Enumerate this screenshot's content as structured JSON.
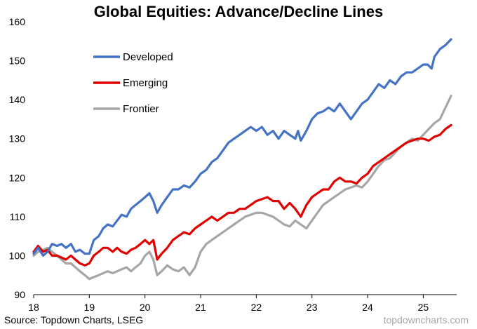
{
  "chart_data": {
    "type": "line",
    "title": "Global Equities: Advance/Decline Lines",
    "xlabel": "",
    "ylabel": "",
    "xlim": [
      2018.0,
      2025.6
    ],
    "ylim": [
      90,
      160
    ],
    "y_ticks": [
      90,
      100,
      110,
      120,
      130,
      140,
      150,
      160
    ],
    "x_ticks": [
      18,
      19,
      20,
      21,
      22,
      23,
      24,
      25
    ],
    "legend_position": "top-left",
    "grid": false,
    "series": [
      {
        "name": "Developed",
        "color": "#4472C4",
        "points": [
          [
            2018.0,
            100.5
          ],
          [
            2018.08,
            102
          ],
          [
            2018.17,
            100
          ],
          [
            2018.25,
            101
          ],
          [
            2018.33,
            103
          ],
          [
            2018.42,
            102.5
          ],
          [
            2018.5,
            103
          ],
          [
            2018.58,
            102
          ],
          [
            2018.67,
            103
          ],
          [
            2018.75,
            101
          ],
          [
            2018.83,
            101.5
          ],
          [
            2018.92,
            100.5
          ],
          [
            2019.0,
            100.5
          ],
          [
            2019.08,
            104
          ],
          [
            2019.17,
            105
          ],
          [
            2019.25,
            107
          ],
          [
            2019.33,
            108
          ],
          [
            2019.42,
            107.5
          ],
          [
            2019.5,
            109
          ],
          [
            2019.58,
            110.5
          ],
          [
            2019.67,
            110
          ],
          [
            2019.75,
            112
          ],
          [
            2019.83,
            113
          ],
          [
            2019.92,
            114
          ],
          [
            2020.0,
            115
          ],
          [
            2020.08,
            116
          ],
          [
            2020.15,
            114
          ],
          [
            2020.22,
            111
          ],
          [
            2020.3,
            113
          ],
          [
            2020.4,
            115
          ],
          [
            2020.5,
            117
          ],
          [
            2020.6,
            117
          ],
          [
            2020.7,
            118
          ],
          [
            2020.8,
            117.5
          ],
          [
            2020.9,
            119
          ],
          [
            2021.0,
            121
          ],
          [
            2021.1,
            122
          ],
          [
            2021.2,
            124
          ],
          [
            2021.3,
            125
          ],
          [
            2021.4,
            127
          ],
          [
            2021.5,
            129
          ],
          [
            2021.6,
            130
          ],
          [
            2021.7,
            131
          ],
          [
            2021.8,
            132
          ],
          [
            2021.9,
            133
          ],
          [
            2022.0,
            132
          ],
          [
            2022.1,
            133
          ],
          [
            2022.2,
            131
          ],
          [
            2022.3,
            132
          ],
          [
            2022.4,
            130
          ],
          [
            2022.5,
            132
          ],
          [
            2022.6,
            131
          ],
          [
            2022.7,
            130
          ],
          [
            2022.75,
            132
          ],
          [
            2022.8,
            129.5
          ],
          [
            2022.9,
            132
          ],
          [
            2023.0,
            135
          ],
          [
            2023.1,
            136.5
          ],
          [
            2023.2,
            137
          ],
          [
            2023.3,
            138
          ],
          [
            2023.4,
            137
          ],
          [
            2023.5,
            139
          ],
          [
            2023.6,
            137
          ],
          [
            2023.7,
            135
          ],
          [
            2023.8,
            137
          ],
          [
            2023.9,
            139
          ],
          [
            2024.0,
            140
          ],
          [
            2024.1,
            142
          ],
          [
            2024.2,
            144
          ],
          [
            2024.3,
            143
          ],
          [
            2024.4,
            145
          ],
          [
            2024.5,
            144
          ],
          [
            2024.6,
            146
          ],
          [
            2024.7,
            147
          ],
          [
            2024.8,
            147
          ],
          [
            2024.9,
            148
          ],
          [
            2025.0,
            149
          ],
          [
            2025.08,
            149
          ],
          [
            2025.15,
            148
          ],
          [
            2025.2,
            151
          ],
          [
            2025.3,
            153
          ],
          [
            2025.4,
            154
          ],
          [
            2025.5,
            155.5
          ]
        ]
      },
      {
        "name": "Emerging",
        "color": "#E00000",
        "points": [
          [
            2018.0,
            101
          ],
          [
            2018.08,
            102.5
          ],
          [
            2018.17,
            101
          ],
          [
            2018.25,
            101.5
          ],
          [
            2018.33,
            100
          ],
          [
            2018.42,
            100
          ],
          [
            2018.5,
            99.5
          ],
          [
            2018.58,
            99
          ],
          [
            2018.67,
            100
          ],
          [
            2018.75,
            99
          ],
          [
            2018.83,
            98
          ],
          [
            2018.92,
            97.5
          ],
          [
            2019.0,
            98
          ],
          [
            2019.08,
            100
          ],
          [
            2019.17,
            101
          ],
          [
            2019.25,
            102
          ],
          [
            2019.33,
            102
          ],
          [
            2019.42,
            101
          ],
          [
            2019.5,
            102
          ],
          [
            2019.58,
            101
          ],
          [
            2019.67,
            100.5
          ],
          [
            2019.75,
            101.5
          ],
          [
            2019.83,
            102
          ],
          [
            2019.92,
            103
          ],
          [
            2020.0,
            104
          ],
          [
            2020.08,
            103
          ],
          [
            2020.15,
            104
          ],
          [
            2020.22,
            99
          ],
          [
            2020.3,
            100.5
          ],
          [
            2020.4,
            102
          ],
          [
            2020.5,
            104
          ],
          [
            2020.6,
            105
          ],
          [
            2020.7,
            106
          ],
          [
            2020.8,
            105.5
          ],
          [
            2020.9,
            107
          ],
          [
            2021.0,
            108
          ],
          [
            2021.1,
            109
          ],
          [
            2021.2,
            110
          ],
          [
            2021.3,
            109
          ],
          [
            2021.4,
            110
          ],
          [
            2021.5,
            111
          ],
          [
            2021.6,
            111
          ],
          [
            2021.7,
            112
          ],
          [
            2021.8,
            112
          ],
          [
            2021.9,
            113
          ],
          [
            2022.0,
            114
          ],
          [
            2022.1,
            114.5
          ],
          [
            2022.2,
            115
          ],
          [
            2022.3,
            114
          ],
          [
            2022.4,
            114
          ],
          [
            2022.5,
            112
          ],
          [
            2022.6,
            113.5
          ],
          [
            2022.7,
            112
          ],
          [
            2022.8,
            110
          ],
          [
            2022.9,
            113
          ],
          [
            2023.0,
            115
          ],
          [
            2023.1,
            116
          ],
          [
            2023.2,
            117
          ],
          [
            2023.3,
            117
          ],
          [
            2023.4,
            119
          ],
          [
            2023.5,
            120
          ],
          [
            2023.6,
            119
          ],
          [
            2023.7,
            119
          ],
          [
            2023.8,
            118.5
          ],
          [
            2023.9,
            120
          ],
          [
            2024.0,
            121
          ],
          [
            2024.1,
            123
          ],
          [
            2024.2,
            124
          ],
          [
            2024.3,
            125
          ],
          [
            2024.4,
            126
          ],
          [
            2024.5,
            127
          ],
          [
            2024.6,
            128
          ],
          [
            2024.7,
            129
          ],
          [
            2024.8,
            129.5
          ],
          [
            2024.9,
            130
          ],
          [
            2025.0,
            130
          ],
          [
            2025.1,
            129.5
          ],
          [
            2025.2,
            130.5
          ],
          [
            2025.3,
            131
          ],
          [
            2025.4,
            132.5
          ],
          [
            2025.5,
            133.5
          ]
        ]
      },
      {
        "name": "Frontier",
        "color": "#A6A6A6",
        "points": [
          [
            2018.0,
            100
          ],
          [
            2018.08,
            101
          ],
          [
            2018.17,
            101.5
          ],
          [
            2018.25,
            102
          ],
          [
            2018.33,
            101
          ],
          [
            2018.42,
            100
          ],
          [
            2018.5,
            99
          ],
          [
            2018.58,
            98
          ],
          [
            2018.67,
            98
          ],
          [
            2018.75,
            97
          ],
          [
            2018.83,
            96
          ],
          [
            2018.92,
            95
          ],
          [
            2019.0,
            94
          ],
          [
            2019.08,
            94.5
          ],
          [
            2019.17,
            95
          ],
          [
            2019.25,
            95.5
          ],
          [
            2019.33,
            96
          ],
          [
            2019.42,
            95.5
          ],
          [
            2019.5,
            96
          ],
          [
            2019.58,
            96.5
          ],
          [
            2019.67,
            97
          ],
          [
            2019.75,
            96
          ],
          [
            2019.83,
            97
          ],
          [
            2019.92,
            98
          ],
          [
            2020.0,
            100
          ],
          [
            2020.08,
            101
          ],
          [
            2020.15,
            99
          ],
          [
            2020.22,
            95
          ],
          [
            2020.3,
            96
          ],
          [
            2020.4,
            97.5
          ],
          [
            2020.5,
            96.5
          ],
          [
            2020.6,
            96
          ],
          [
            2020.7,
            97
          ],
          [
            2020.8,
            95
          ],
          [
            2020.9,
            97
          ],
          [
            2021.0,
            101
          ],
          [
            2021.1,
            103
          ],
          [
            2021.2,
            104
          ],
          [
            2021.3,
            105
          ],
          [
            2021.4,
            106
          ],
          [
            2021.5,
            107
          ],
          [
            2021.6,
            108
          ],
          [
            2021.7,
            109
          ],
          [
            2021.8,
            110
          ],
          [
            2021.9,
            110.5
          ],
          [
            2022.0,
            111
          ],
          [
            2022.1,
            111
          ],
          [
            2022.2,
            110.5
          ],
          [
            2022.3,
            110
          ],
          [
            2022.4,
            109
          ],
          [
            2022.5,
            108
          ],
          [
            2022.6,
            107.5
          ],
          [
            2022.7,
            109
          ],
          [
            2022.8,
            108
          ],
          [
            2022.9,
            107
          ],
          [
            2023.0,
            109
          ],
          [
            2023.1,
            111
          ],
          [
            2023.2,
            113
          ],
          [
            2023.3,
            114
          ],
          [
            2023.4,
            115
          ],
          [
            2023.5,
            116
          ],
          [
            2023.6,
            117
          ],
          [
            2023.7,
            117.5
          ],
          [
            2023.8,
            118
          ],
          [
            2023.9,
            117.5
          ],
          [
            2024.0,
            119
          ],
          [
            2024.1,
            121
          ],
          [
            2024.2,
            123
          ],
          [
            2024.3,
            124.5
          ],
          [
            2024.4,
            125
          ],
          [
            2024.5,
            126.5
          ],
          [
            2024.6,
            128
          ],
          [
            2024.7,
            129
          ],
          [
            2024.8,
            130
          ],
          [
            2024.9,
            129.5
          ],
          [
            2025.0,
            131
          ],
          [
            2025.1,
            132.5
          ],
          [
            2025.2,
            134
          ],
          [
            2025.3,
            135
          ],
          [
            2025.4,
            138
          ],
          [
            2025.5,
            141
          ]
        ]
      }
    ]
  },
  "footer": {
    "source": "Source: Topdown Charts, LSEG",
    "watermark": "topdowncharts.com"
  }
}
